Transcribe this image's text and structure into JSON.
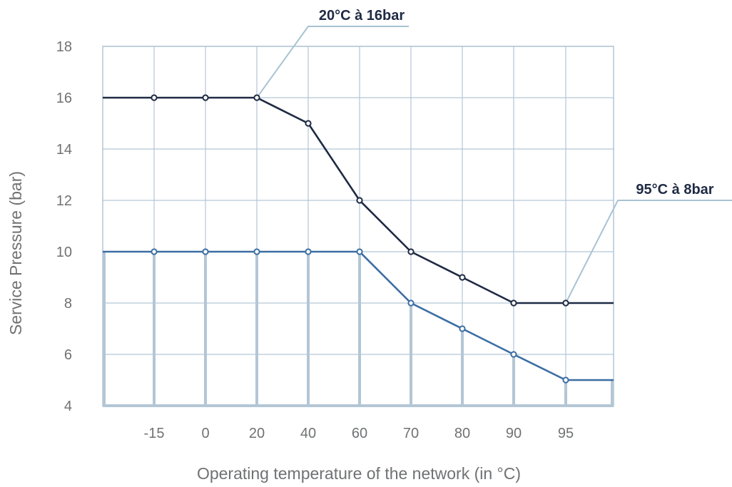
{
  "chart_data": {
    "type": "line",
    "title": "",
    "xlabel": "Operating temperature of the network (in °C)",
    "ylabel": "Service Pressure (bar)",
    "categories": [
      "-15",
      "0",
      "20",
      "40",
      "60",
      "70",
      "80",
      "90",
      "95"
    ],
    "ylim": [
      4,
      18
    ],
    "yticks": [
      "4",
      "6",
      "8",
      "10",
      "12",
      "14",
      "16",
      "18"
    ],
    "grid": true,
    "series": [
      {
        "values": [
          16,
          16,
          16,
          15,
          12,
          10,
          9,
          8,
          8
        ],
        "color": "#1f2a44",
        "extends_left": 16,
        "extends_right": 8
      },
      {
        "values": [
          10,
          10,
          10,
          10,
          10,
          8,
          7,
          6,
          5
        ],
        "color": "#3b6ea3",
        "extends_left": 10,
        "extends_right": 5
      }
    ],
    "annotations": [
      {
        "text": "20°C à 16bar",
        "category": "20",
        "value": 16
      },
      {
        "text": "95°C à 8bar",
        "category": "95",
        "value": 8
      }
    ],
    "colors": {
      "grid": "#b3c6d5",
      "fill_bars": "#b3c6d5",
      "leader": "#a8c3d3"
    }
  }
}
